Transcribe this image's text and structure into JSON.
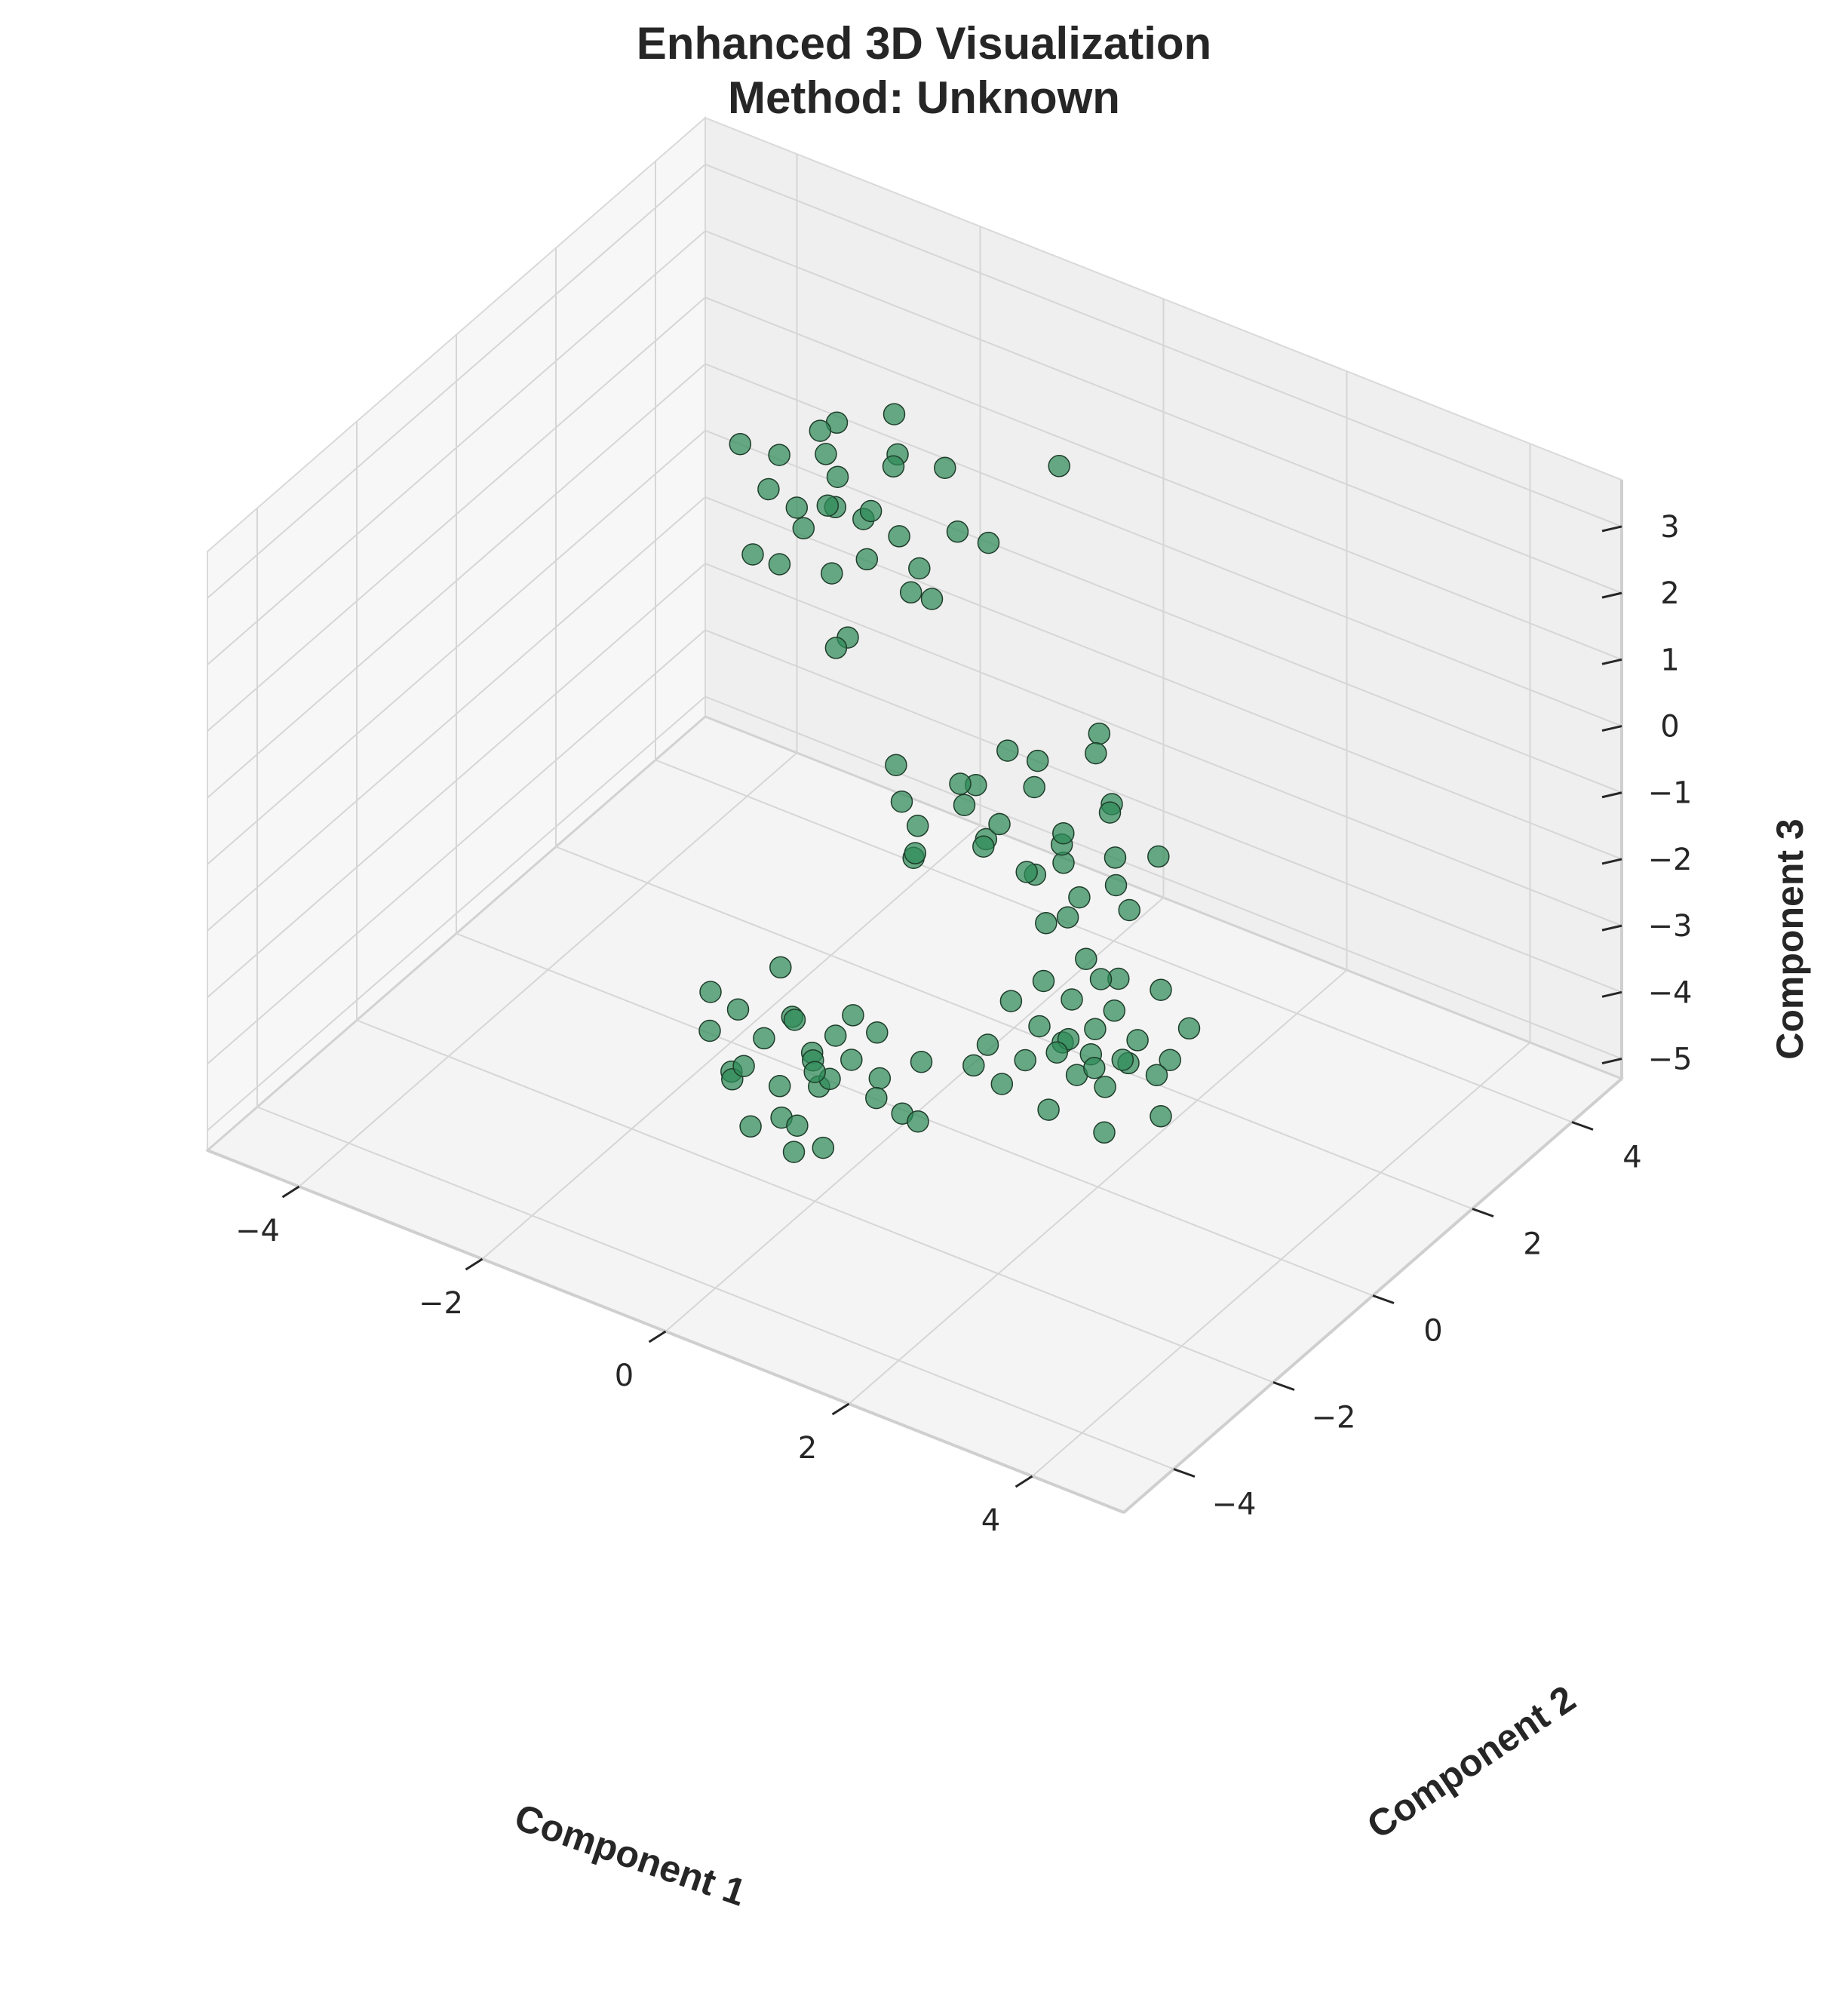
{
  "chart_data": {
    "type": "scatter",
    "title_line1": "Enhanced 3D Visualization",
    "title_line2": "Method: Unknown",
    "xlabel": "Component 1",
    "ylabel": "Component 2",
    "zlabel": "Component 3",
    "x_ticks": [
      "−4",
      "−2",
      "0",
      "2",
      "4"
    ],
    "y_ticks": [
      "−4",
      "−2",
      "0",
      "2",
      "4"
    ],
    "z_ticks": [
      "−5",
      "−4",
      "−3",
      "−2",
      "−1",
      "0",
      "1",
      "2",
      "3"
    ],
    "xlim": [
      -5,
      5
    ],
    "ylim": [
      -5,
      5
    ],
    "zlim": [
      -5.3,
      3.7
    ],
    "grid": true,
    "marker_color": "#2e8b57",
    "clusters": [
      {
        "points": [
          [
            -1.2,
            1.8,
            3.4
          ],
          [
            -1.5,
            1.2,
            3.5
          ],
          [
            -1.0,
            1.5,
            3.1
          ],
          [
            -1.9,
            1.6,
            2.9
          ],
          [
            -0.7,
            1.9,
            2.8
          ],
          [
            -1.3,
            0.8,
            2.6
          ],
          [
            -2.5,
            1.1,
            2.7
          ],
          [
            -1.6,
            1.4,
            2.5
          ],
          [
            -1.1,
            1.0,
            2.4
          ],
          [
            -0.4,
            1.6,
            2.2
          ],
          [
            -2.0,
            1.9,
            2.3
          ],
          [
            -1.7,
            0.9,
            2.0
          ],
          [
            -2.3,
            1.3,
            2.0
          ],
          [
            -0.9,
            0.7,
            2.1
          ],
          [
            -1.4,
            1.7,
            1.9
          ],
          [
            -0.6,
            1.2,
            1.8
          ],
          [
            -2.1,
            1.5,
            1.7
          ],
          [
            -1.8,
            0.6,
            1.6
          ],
          [
            -1.2,
            1.9,
            1.5
          ],
          [
            -0.3,
            0.9,
            1.7
          ],
          [
            -1.5,
            1.1,
            1.3
          ],
          [
            -2.2,
            0.8,
            1.4
          ],
          [
            -0.8,
            1.4,
            1.2
          ],
          [
            -1.0,
            0.5,
            1.0
          ],
          [
            0.6,
            1.8,
            3.6
          ],
          [
            -1.4,
            1.0,
            0.3
          ],
          [
            0.1,
            1.3,
            2.5
          ],
          [
            -1.6,
            1.2,
            2.2
          ],
          [
            -2.4,
            1.7,
            2.2
          ],
          [
            -1.1,
            1.6,
            2.8
          ]
        ]
      },
      {
        "points": [
          [
            1.2,
            1.5,
            0.1
          ],
          [
            0.8,
            1.0,
            -0.2
          ],
          [
            1.5,
            1.2,
            -0.6
          ],
          [
            1.0,
            1.8,
            -0.5
          ],
          [
            0.2,
            1.5,
            -0.7
          ],
          [
            1.7,
            0.9,
            -1.1
          ],
          [
            0.6,
            1.3,
            -0.9
          ],
          [
            1.3,
            0.6,
            -1.2
          ],
          [
            0.0,
            1.0,
            -1.3
          ],
          [
            1.9,
            1.4,
            -1.3
          ],
          [
            -0.8,
            1.1,
            -1.2
          ],
          [
            0.4,
            0.7,
            -1.4
          ],
          [
            1.1,
            1.9,
            -1.4
          ],
          [
            -0.2,
            1.6,
            -1.5
          ],
          [
            0.9,
            1.3,
            -1.6
          ],
          [
            1.6,
            1.1,
            -1.7
          ],
          [
            -0.4,
            0.8,
            -1.7
          ],
          [
            0.7,
            1.7,
            -1.8
          ],
          [
            1.4,
            0.5,
            -1.9
          ],
          [
            -0.9,
            1.4,
            -2.0
          ],
          [
            0.1,
            1.2,
            -2.0
          ],
          [
            1.8,
            1.0,
            -1.9
          ],
          [
            -0.5,
            0.9,
            -2.3
          ],
          [
            0.5,
            1.5,
            -2.4
          ],
          [
            1.0,
            0.8,
            -2.4
          ],
          [
            -0.7,
            1.3,
            -2.6
          ],
          [
            0.3,
            1.7,
            -2.6
          ],
          [
            1.2,
            1.1,
            -2.1
          ],
          [
            0.6,
            0.6,
            -1.0
          ],
          [
            -0.1,
            1.1,
            -1.1
          ]
        ]
      },
      {
        "points": [
          [
            -1.3,
            -0.3,
            -3.6
          ],
          [
            -0.9,
            -0.8,
            -3.8
          ],
          [
            -0.4,
            -0.5,
            -3.7
          ],
          [
            -1.1,
            -1.0,
            -4.1
          ],
          [
            -0.2,
            -0.9,
            -4.0
          ],
          [
            -1.6,
            -0.6,
            -4.2
          ],
          [
            -0.7,
            -0.3,
            -4.3
          ],
          [
            0.0,
            -0.7,
            -4.3
          ],
          [
            -1.2,
            -0.2,
            -4.4
          ],
          [
            -0.5,
            -1.0,
            -4.5
          ],
          [
            -1.8,
            -0.8,
            -4.5
          ],
          [
            -0.9,
            -0.4,
            -4.6
          ],
          [
            0.3,
            -0.8,
            -4.6
          ],
          [
            -1.4,
            -1.1,
            -4.7
          ],
          [
            -0.6,
            -0.6,
            -4.7
          ],
          [
            -1.0,
            -0.2,
            -4.9
          ],
          [
            -0.2,
            -0.4,
            -4.9
          ],
          [
            -1.5,
            -0.9,
            -5.0
          ],
          [
            -0.8,
            -1.2,
            -5.0
          ],
          [
            0.2,
            -0.3,
            -5.1
          ],
          [
            -1.2,
            -0.5,
            -5.2
          ],
          [
            -0.4,
            -1.1,
            -5.3
          ],
          [
            -1.7,
            -0.3,
            -5.3
          ],
          [
            -0.9,
            -0.7,
            -5.5
          ],
          [
            -1.3,
            -0.9,
            -5.6
          ],
          [
            -1.1,
            -0.4,
            -6.2
          ],
          [
            0.4,
            -0.6,
            -3.9
          ],
          [
            -0.3,
            -0.2,
            -4.1
          ],
          [
            -1.9,
            -0.6,
            -4.1
          ],
          [
            -0.6,
            -0.9,
            -4.4
          ]
        ]
      },
      {
        "points": [
          [
            3.5,
            -3.0,
            0.9
          ],
          [
            3.8,
            -2.9,
            0.7
          ],
          [
            3.2,
            -3.3,
            0.6
          ],
          [
            4.1,
            -2.6,
            0.5
          ],
          [
            3.4,
            -3.1,
            0.3
          ],
          [
            3.7,
            -2.8,
            0.1
          ],
          [
            2.9,
            -3.4,
            0.2
          ],
          [
            4.3,
            -2.4,
            -0.1
          ],
          [
            3.6,
            -3.0,
            -0.1
          ],
          [
            3.1,
            -3.2,
            -0.2
          ],
          [
            3.9,
            -2.7,
            -0.3
          ],
          [
            3.3,
            -3.1,
            -0.4
          ],
          [
            2.7,
            -3.5,
            -0.5
          ],
          [
            4.2,
            -2.6,
            -0.5
          ],
          [
            3.5,
            -2.9,
            -0.6
          ],
          [
            3.0,
            -3.3,
            -0.7
          ],
          [
            3.8,
            -2.7,
            -0.7
          ],
          [
            2.6,
            -3.6,
            -0.8
          ],
          [
            3.4,
            -3.0,
            -0.9
          ],
          [
            4.0,
            -2.5,
            -0.9
          ],
          [
            3.6,
            -2.8,
            -1.1
          ],
          [
            2.8,
            -3.4,
            -1.1
          ],
          [
            3.2,
            -3.2,
            -1.4
          ],
          [
            4.1,
            -2.6,
            -1.4
          ],
          [
            3.7,
            -3.0,
            -1.6
          ],
          [
            3.5,
            -2.7,
            0.4
          ],
          [
            3.2,
            -2.8,
            -0.6
          ],
          [
            3.9,
            -3.0,
            -0.4
          ],
          [
            3.4,
            -3.4,
            -0.3
          ],
          [
            3.7,
            -3.2,
            -0.5
          ]
        ]
      }
    ]
  }
}
